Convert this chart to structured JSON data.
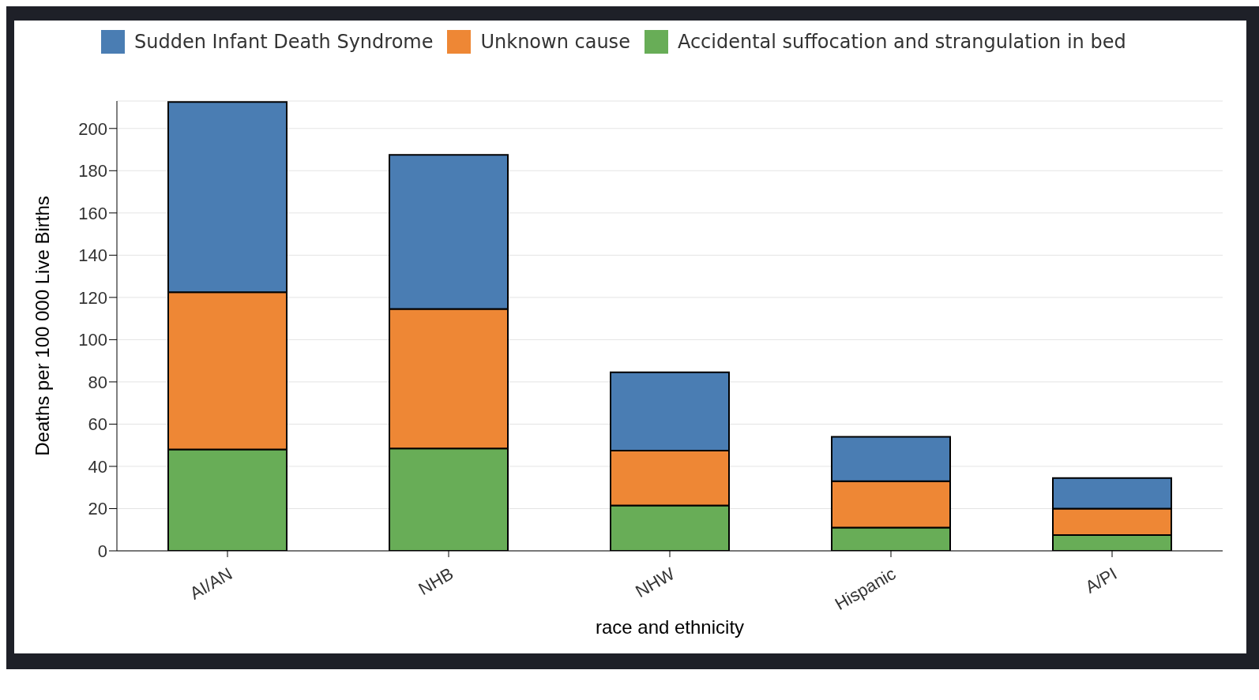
{
  "chart_data": {
    "type": "bar",
    "stacked": true,
    "xlabel": "race and ethnicity",
    "ylabel": "Deaths per 100 000 Live Births",
    "categories": [
      "AI/AN",
      "NHB",
      "NHW",
      "Hispanic",
      "A/PI"
    ],
    "series": [
      {
        "name": "Accidental suffocation and strangulation in bed",
        "color": "#68ad57",
        "values": [
          48,
          48.5,
          21.5,
          11,
          7.5
        ]
      },
      {
        "name": "Unknown cause",
        "color": "#ee8735",
        "values": [
          74.5,
          66,
          26,
          22,
          12.5
        ]
      },
      {
        "name": "Sudden Infant Death Syndrome",
        "color": "#4a7db3",
        "values": [
          90,
          73,
          37,
          21,
          14.5
        ]
      }
    ],
    "ylim": [
      0,
      213
    ],
    "yticks": [
      0,
      20,
      40,
      60,
      80,
      100,
      120,
      140,
      160,
      180,
      200
    ],
    "grid": "y",
    "legend": "top"
  }
}
